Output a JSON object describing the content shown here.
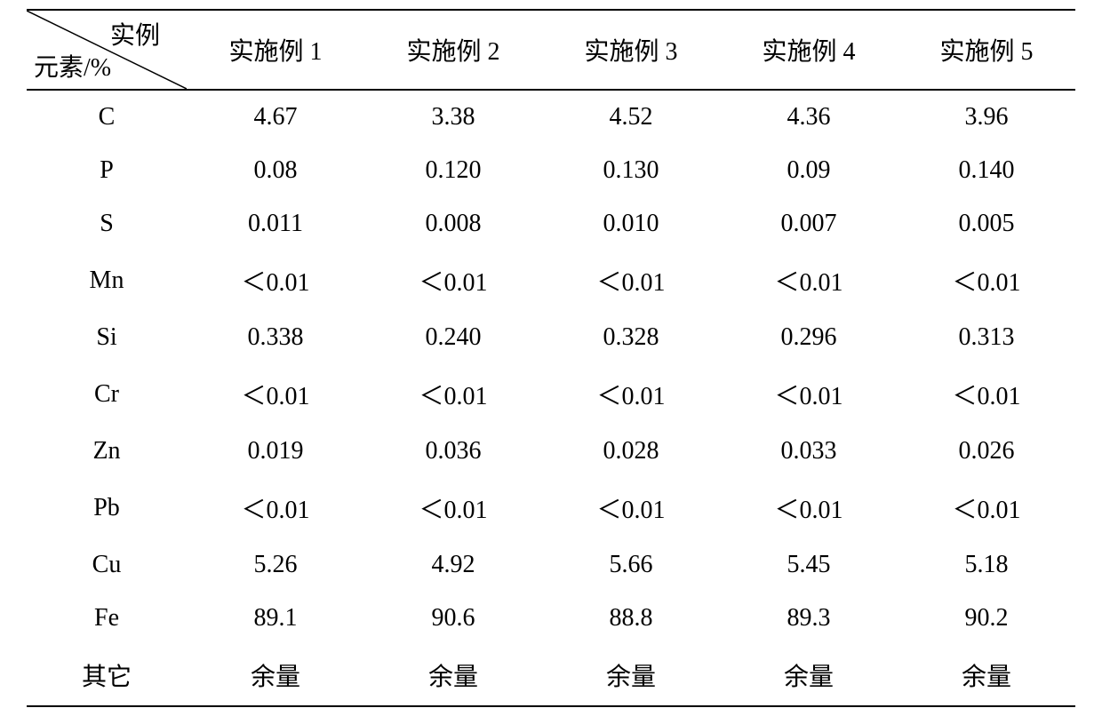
{
  "table": {
    "diagonal_header": {
      "top": "实例",
      "bottom": "元素/%"
    },
    "columns": [
      "实施例 1",
      "实施例 2",
      "实施例 3",
      "实施例 4",
      "实施例 5"
    ],
    "rows": [
      {
        "label": "C",
        "values": [
          "4.67",
          "3.38",
          "4.52",
          "4.36",
          "3.96"
        ]
      },
      {
        "label": "P",
        "values": [
          "0.08",
          "0.120",
          "0.130",
          "0.09",
          "0.140"
        ]
      },
      {
        "label": "S",
        "values": [
          "0.011",
          "0.008",
          "0.010",
          "0.007",
          "0.005"
        ]
      },
      {
        "label": "Mn",
        "values": [
          "＜0.01",
          "＜0.01",
          "＜0.01",
          "＜0.01",
          "＜0.01"
        ]
      },
      {
        "label": "Si",
        "values": [
          "0.338",
          "0.240",
          "0.328",
          "0.296",
          "0.313"
        ]
      },
      {
        "label": "Cr",
        "values": [
          "＜0.01",
          "＜0.01",
          "＜0.01",
          "＜0.01",
          "＜0.01"
        ]
      },
      {
        "label": "Zn",
        "values": [
          "0.019",
          "0.036",
          "0.028",
          "0.033",
          "0.026"
        ]
      },
      {
        "label": "Pb",
        "values": [
          "＜0.01",
          "＜0.01",
          "＜0.01",
          "＜0.01",
          "＜0.01"
        ]
      },
      {
        "label": "Cu",
        "values": [
          "5.26",
          "4.92",
          "5.66",
          "5.45",
          "5.18"
        ]
      },
      {
        "label": "Fe",
        "values": [
          "89.1",
          "90.6",
          "88.8",
          "89.3",
          "90.2"
        ]
      },
      {
        "label": "其它",
        "values": [
          "余量",
          "余量",
          "余量",
          "余量",
          "余量"
        ]
      }
    ],
    "style": {
      "background_color": "#ffffff",
      "text_color": "#000000",
      "border_color": "#000000",
      "border_width": 2,
      "font_size": 28,
      "font_family": "SimSun, Times New Roman, serif",
      "cell_padding_v": 14,
      "col_widths_pct": [
        15,
        17,
        17,
        17,
        17,
        17
      ]
    }
  }
}
